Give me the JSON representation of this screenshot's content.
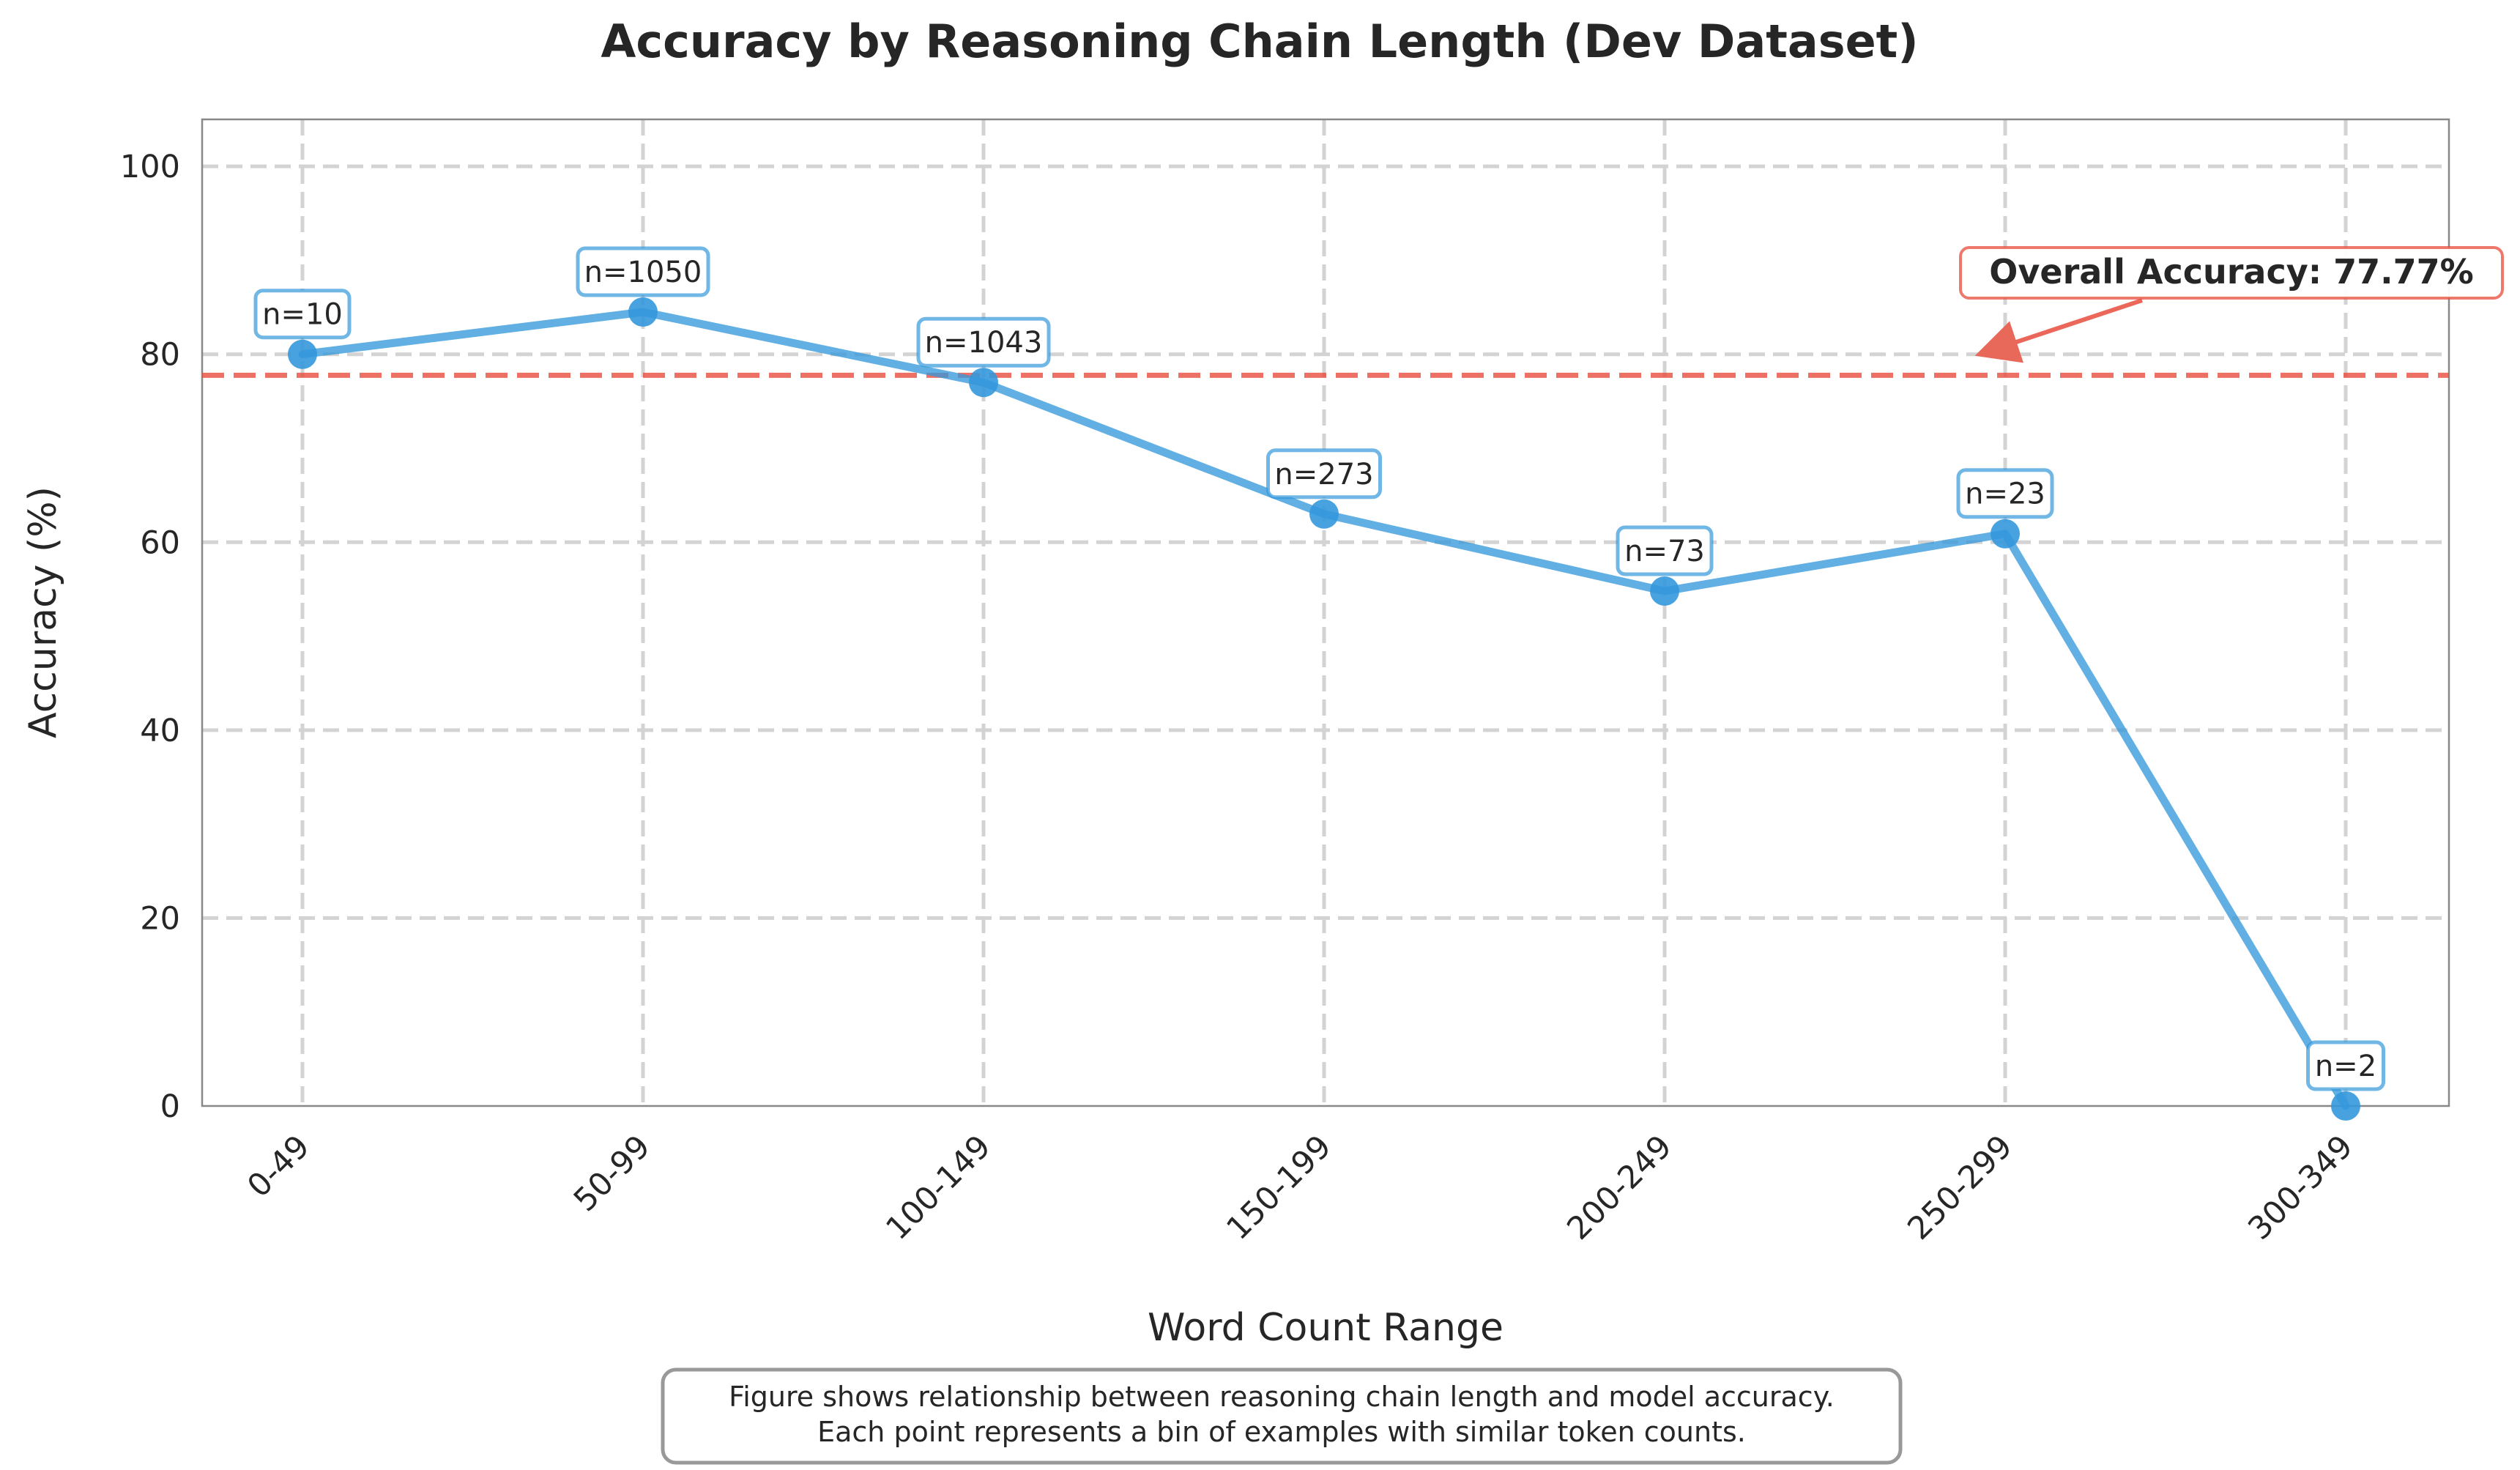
{
  "chart_data": {
    "type": "line",
    "title": "Accuracy by Reasoning Chain Length (Dev Dataset)",
    "xlabel": "Word Count Range",
    "ylabel": "Accuracy (%)",
    "categories": [
      "0-49",
      "50-99",
      "100-149",
      "150-199",
      "200-249",
      "250-299",
      "300-349"
    ],
    "series": [
      {
        "values": [
          80.0,
          84.5,
          77.0,
          63.0,
          54.8,
          60.9,
          0.0
        ],
        "counts": [
          "n=10",
          "n=1050",
          "n=1043",
          "n=273",
          "n=73",
          "n=23",
          "n=2"
        ],
        "color": "#3498db"
      }
    ],
    "yticks": [
      0,
      20,
      40,
      60,
      80,
      100
    ],
    "ylim": [
      0,
      105
    ],
    "grid": true,
    "reference_line": {
      "value": 77.77,
      "label": "Overall Accuracy: 77.77%",
      "color": "#e74c3c",
      "style": "dashed"
    }
  },
  "caption": {
    "line1": "Figure shows relationship between reasoning chain length and model accuracy.",
    "line2": "Each point represents a bin of examples with similar token counts."
  }
}
